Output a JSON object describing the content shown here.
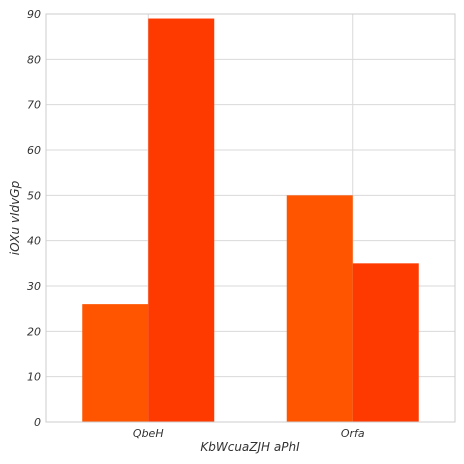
{
  "chart_data": {
    "type": "bar",
    "categories": [
      "QbeH",
      "Orfa"
    ],
    "series": [
      {
        "values": [
          26,
          50
        ],
        "color": "#ff5500"
      },
      {
        "values": [
          89,
          35
        ],
        "color": "#ff3a00"
      }
    ],
    "xlabel": "KbWcuaZJH aPhI",
    "ylabel": "iOXu vIdvGp",
    "ylim": [
      0,
      90
    ],
    "yticks": [
      0,
      10,
      20,
      30,
      40,
      50,
      60,
      70,
      80,
      90
    ],
    "grid": true,
    "legend": "none"
  }
}
